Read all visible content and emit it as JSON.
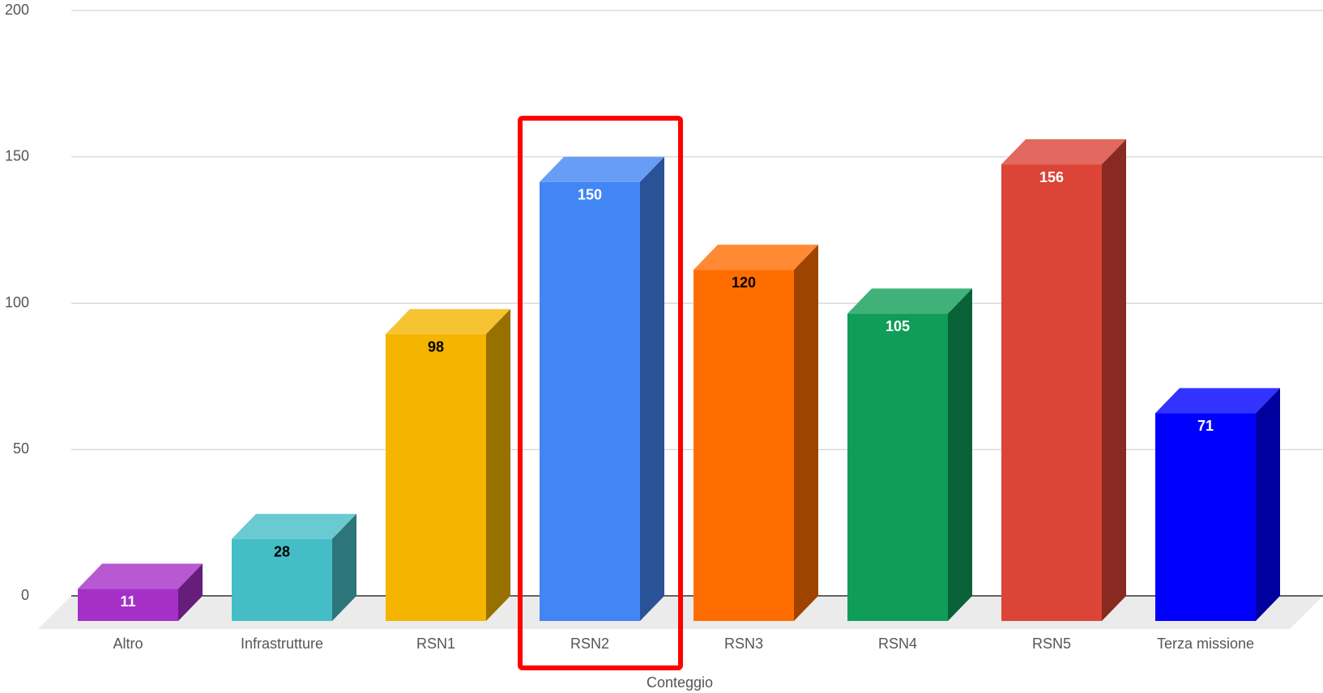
{
  "chart_data": {
    "type": "bar3d",
    "x_label": "Conteggio",
    "categories": [
      "Altro",
      "Infrastrutture",
      "RSN1",
      "RSN2",
      "RSN3",
      "RSN4",
      "RSN5",
      "Terza missione"
    ],
    "values": [
      11,
      28,
      98,
      150,
      120,
      105,
      156,
      71
    ],
    "colors": [
      "#a62fc8",
      "#45bdc6",
      "#f4b400",
      "#4285f4",
      "#ff6d00",
      "#0f9d58",
      "#db4437",
      "#0000ff"
    ],
    "label_colors": [
      "#ffffff",
      "#000000",
      "#000000",
      "#ffffff",
      "#000000",
      "#ffffff",
      "#ffffff",
      "#ffffff"
    ],
    "highlight": 3,
    "highlight_color": "#ff0000",
    "ylim": [
      0,
      200
    ],
    "yticks": [
      0,
      50,
      100,
      150,
      200
    ],
    "grid": true
  }
}
